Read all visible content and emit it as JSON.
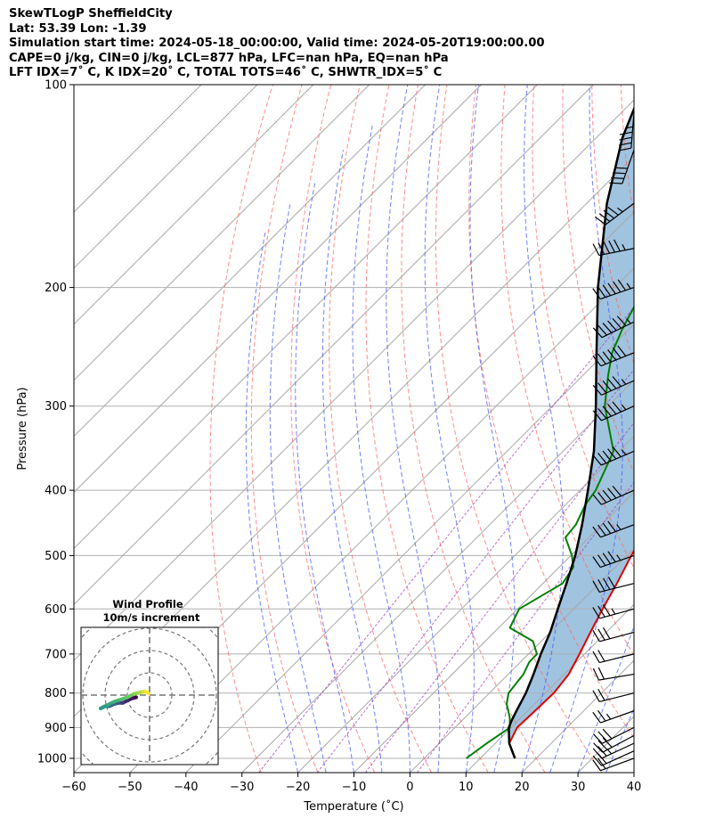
{
  "header": {
    "line1": "SkewTLogP SheffieldCity",
    "line2": "Lat: 53.39   Lon: -1.39",
    "line3": "Simulation start time: 2024-05-18_00:00:00, Valid time: 2024-05-20T19:00:00.00",
    "line4": "CAPE=0 j/kg, CIN=0 j/kg, LCL=877 hPa, LFC=nan hPa, EQ=nan hPa",
    "line5": "LFT IDX=7˚ C, K IDX=20˚ C, TOTAL TOTS=46˚ C, SHWTR_IDX=5˚ C"
  },
  "colors": {
    "temperature": "#e00000",
    "dewpoint": "#008000",
    "parcel": "#000000",
    "shade": "#8fb9d9",
    "dry_adiabat": "#ff6666",
    "moist_adiabat": "#4455ff",
    "mixing_ratio": "#a040c0",
    "isotherm": "#a8a8a8",
    "isobar": "#b0b0b0"
  },
  "chart_data": {
    "type": "skewt",
    "xlabel": "Temperature (˚C)",
    "ylabel": "Pressure (hPa)",
    "xlim": [
      -60,
      40
    ],
    "ylim": [
      1050,
      100
    ],
    "x_ticks": [
      "−60",
      "−50",
      "−40",
      "−30",
      "−20",
      "−10",
      "0",
      "10",
      "20",
      "30",
      "40"
    ],
    "y_ticks": [
      "100",
      "200",
      "300",
      "400",
      "500",
      "600",
      "700",
      "800",
      "900",
      "1000"
    ],
    "grid": true,
    "series": [
      {
        "key": "temperature",
        "points": [
          [
            1000,
            16.2
          ],
          [
            950,
            12.5
          ],
          [
            900,
            11.1
          ],
          [
            850,
            11.3
          ],
          [
            800,
            11.5
          ],
          [
            750,
            10.8
          ],
          [
            700,
            9.1
          ],
          [
            650,
            7.2
          ],
          [
            600,
            5.2
          ],
          [
            550,
            3.2
          ],
          [
            500,
            0.8
          ],
          [
            450,
            -1.5
          ],
          [
            400,
            -4.5
          ],
          [
            350,
            -8.5
          ],
          [
            300,
            -13.7
          ],
          [
            270,
            -17.4
          ],
          [
            250,
            -19.7
          ],
          [
            230,
            -21.5
          ],
          [
            210,
            -22
          ],
          [
            200,
            -21.9
          ],
          [
            180,
            -21.7
          ],
          [
            160,
            -22.5
          ],
          [
            150,
            -23
          ],
          [
            140,
            -24.7
          ],
          [
            130,
            -27
          ],
          [
            120,
            -30
          ],
          [
            110,
            -33
          ],
          [
            100,
            -37
          ]
        ]
      },
      {
        "key": "dewpoint",
        "points": [
          [
            1000,
            7.5
          ],
          [
            950,
            8.5
          ],
          [
            900,
            9.8
          ],
          [
            870,
            8
          ],
          [
            830,
            5
          ],
          [
            800,
            3.4
          ],
          [
            750,
            2.7
          ],
          [
            720,
            1.6
          ],
          [
            700,
            1.5
          ],
          [
            670,
            -1.5
          ],
          [
            640,
            -8
          ],
          [
            600,
            -9.7
          ],
          [
            550,
            -6.5
          ],
          [
            520,
            -7.5
          ],
          [
            500,
            -9.8
          ],
          [
            470,
            -14.2
          ],
          [
            450,
            -14.6
          ],
          [
            420,
            -16.5
          ],
          [
            400,
            -17.2
          ],
          [
            350,
            -21
          ],
          [
            300,
            -30.6
          ],
          [
            270,
            -35.5
          ],
          [
            250,
            -38.8
          ],
          [
            230,
            -41.3
          ],
          [
            210,
            -43.5
          ],
          [
            200,
            -43.8
          ],
          [
            190,
            -44.8
          ],
          [
            180,
            -45.7
          ],
          [
            170,
            -47.5
          ],
          [
            160,
            -49.2
          ],
          [
            150,
            -53.5
          ],
          [
            140,
            -54
          ],
          [
            120,
            -52.5
          ],
          [
            100,
            -50
          ]
        ]
      },
      {
        "key": "parcel",
        "points": [
          [
            1000,
            16.2
          ],
          [
            950,
            12.5
          ],
          [
            900,
            9.6
          ],
          [
            877,
            8.8
          ],
          [
            850,
            8
          ],
          [
            800,
            6.5
          ],
          [
            750,
            4.5
          ],
          [
            700,
            2.2
          ],
          [
            650,
            0
          ],
          [
            600,
            -2.8
          ],
          [
            550,
            -5.8
          ],
          [
            500,
            -9.2
          ],
          [
            450,
            -13.5
          ],
          [
            400,
            -18.6
          ],
          [
            350,
            -24.5
          ],
          [
            300,
            -32.2
          ],
          [
            250,
            -41.6
          ],
          [
            200,
            -53
          ],
          [
            150,
            -66.4
          ],
          [
            120,
            -75.3
          ],
          [
            100,
            -81
          ]
        ]
      }
    ],
    "shaded_region": "between parcel and temperature",
    "wind_barbs": [
      {
        "pressure": 1000,
        "u": -11,
        "v": -4
      },
      {
        "pressure": 975,
        "u": -11,
        "v": -5
      },
      {
        "pressure": 950,
        "u": -13,
        "v": -6
      },
      {
        "pressure": 925,
        "u": -15,
        "v": -8
      },
      {
        "pressure": 900,
        "u": -16,
        "v": -8
      },
      {
        "pressure": 850,
        "u": -14,
        "v": -5
      },
      {
        "pressure": 800,
        "u": -12,
        "v": -3
      },
      {
        "pressure": 750,
        "u": -12,
        "v": -2
      },
      {
        "pressure": 700,
        "u": -12,
        "v": -3
      },
      {
        "pressure": 650,
        "u": -15,
        "v": -4
      },
      {
        "pressure": 600,
        "u": -18,
        "v": -5
      },
      {
        "pressure": 550,
        "u": -20,
        "v": -5
      },
      {
        "pressure": 500,
        "u": -23,
        "v": -8
      },
      {
        "pressure": 450,
        "u": -24,
        "v": -9
      },
      {
        "pressure": 400,
        "u": -25,
        "v": -11
      },
      {
        "pressure": 350,
        "u": -28,
        "v": -12
      },
      {
        "pressure": 300,
        "u": -27,
        "v": -12
      },
      {
        "pressure": 275,
        "u": -27,
        "v": -12
      },
      {
        "pressure": 250,
        "u": -30,
        "v": -12
      },
      {
        "pressure": 225,
        "u": -31,
        "v": -15
      },
      {
        "pressure": 200,
        "u": -32,
        "v": -11
      },
      {
        "pressure": 175,
        "u": -30,
        "v": -6
      },
      {
        "pressure": 150,
        "u": -20,
        "v": -15
      },
      {
        "pressure": 125,
        "u": -7,
        "v": -20
      },
      {
        "pressure": 110,
        "u": -2,
        "v": -25
      }
    ],
    "wind_profile": {
      "title": "Wind Profile",
      "subtitle": "10m/s increment",
      "ring_spacing_ms": 10,
      "hodograph_colormap": [
        "#440154",
        "#3b528b",
        "#21918c",
        "#5ec962",
        "#fde725"
      ],
      "hodograph_points": [
        [
          -6,
          -1
        ],
        [
          -8,
          -1.5
        ],
        [
          -10,
          -2.5
        ],
        [
          -12,
          -3.5
        ],
        [
          -14,
          -3.5
        ],
        [
          -16,
          -4
        ],
        [
          -18,
          -5
        ],
        [
          -20,
          -5
        ],
        [
          -21,
          -5.5
        ],
        [
          -22,
          -6
        ],
        [
          -19,
          -4.5
        ],
        [
          -16,
          -3
        ],
        [
          -13,
          -2
        ],
        [
          -10,
          -1
        ],
        [
          -7,
          0.5
        ],
        [
          -5,
          1
        ],
        [
          -3,
          1.5
        ],
        [
          -1.5,
          1.5
        ],
        [
          -0.5,
          0.7
        ]
      ]
    }
  }
}
